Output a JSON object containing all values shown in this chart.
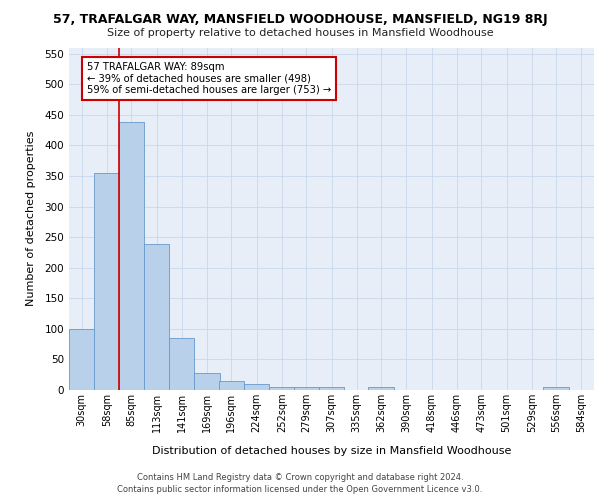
{
  "title": "57, TRAFALGAR WAY, MANSFIELD WOODHOUSE, MANSFIELD, NG19 8RJ",
  "subtitle": "Size of property relative to detached houses in Mansfield Woodhouse",
  "xlabel": "Distribution of detached houses by size in Mansfield Woodhouse",
  "ylabel": "Number of detached properties",
  "footer_line1": "Contains HM Land Registry data © Crown copyright and database right 2024.",
  "footer_line2": "Contains public sector information licensed under the Open Government Licence v3.0.",
  "bins": [
    30,
    58,
    85,
    113,
    141,
    169,
    196,
    224,
    252,
    279,
    307,
    335,
    362,
    390,
    418,
    446,
    473,
    501,
    529,
    556,
    584
  ],
  "bin_labels": [
    "30sqm",
    "58sqm",
    "85sqm",
    "113sqm",
    "141sqm",
    "169sqm",
    "196sqm",
    "224sqm",
    "252sqm",
    "279sqm",
    "307sqm",
    "335sqm",
    "362sqm",
    "390sqm",
    "418sqm",
    "446sqm",
    "473sqm",
    "501sqm",
    "529sqm",
    "556sqm",
    "584sqm"
  ],
  "bar_heights": [
    100,
    355,
    438,
    238,
    85,
    28,
    15,
    9,
    5,
    5,
    5,
    0,
    5,
    0,
    0,
    0,
    0,
    0,
    0,
    5
  ],
  "bar_color": "#b8d0ea",
  "bar_edge_color": "#6699cc",
  "grid_color": "#c8d8ea",
  "bg_color": "#e8eef8",
  "subject_line_color": "#cc0000",
  "annotation_text": "57 TRAFALGAR WAY: 89sqm\n← 39% of detached houses are smaller (498)\n59% of semi-detached houses are larger (753) →",
  "annotation_box_color": "#ffffff",
  "annotation_box_edge": "#cc0000",
  "ylim": [
    0,
    560
  ],
  "yticks": [
    0,
    50,
    100,
    150,
    200,
    250,
    300,
    350,
    400,
    450,
    500,
    550
  ]
}
